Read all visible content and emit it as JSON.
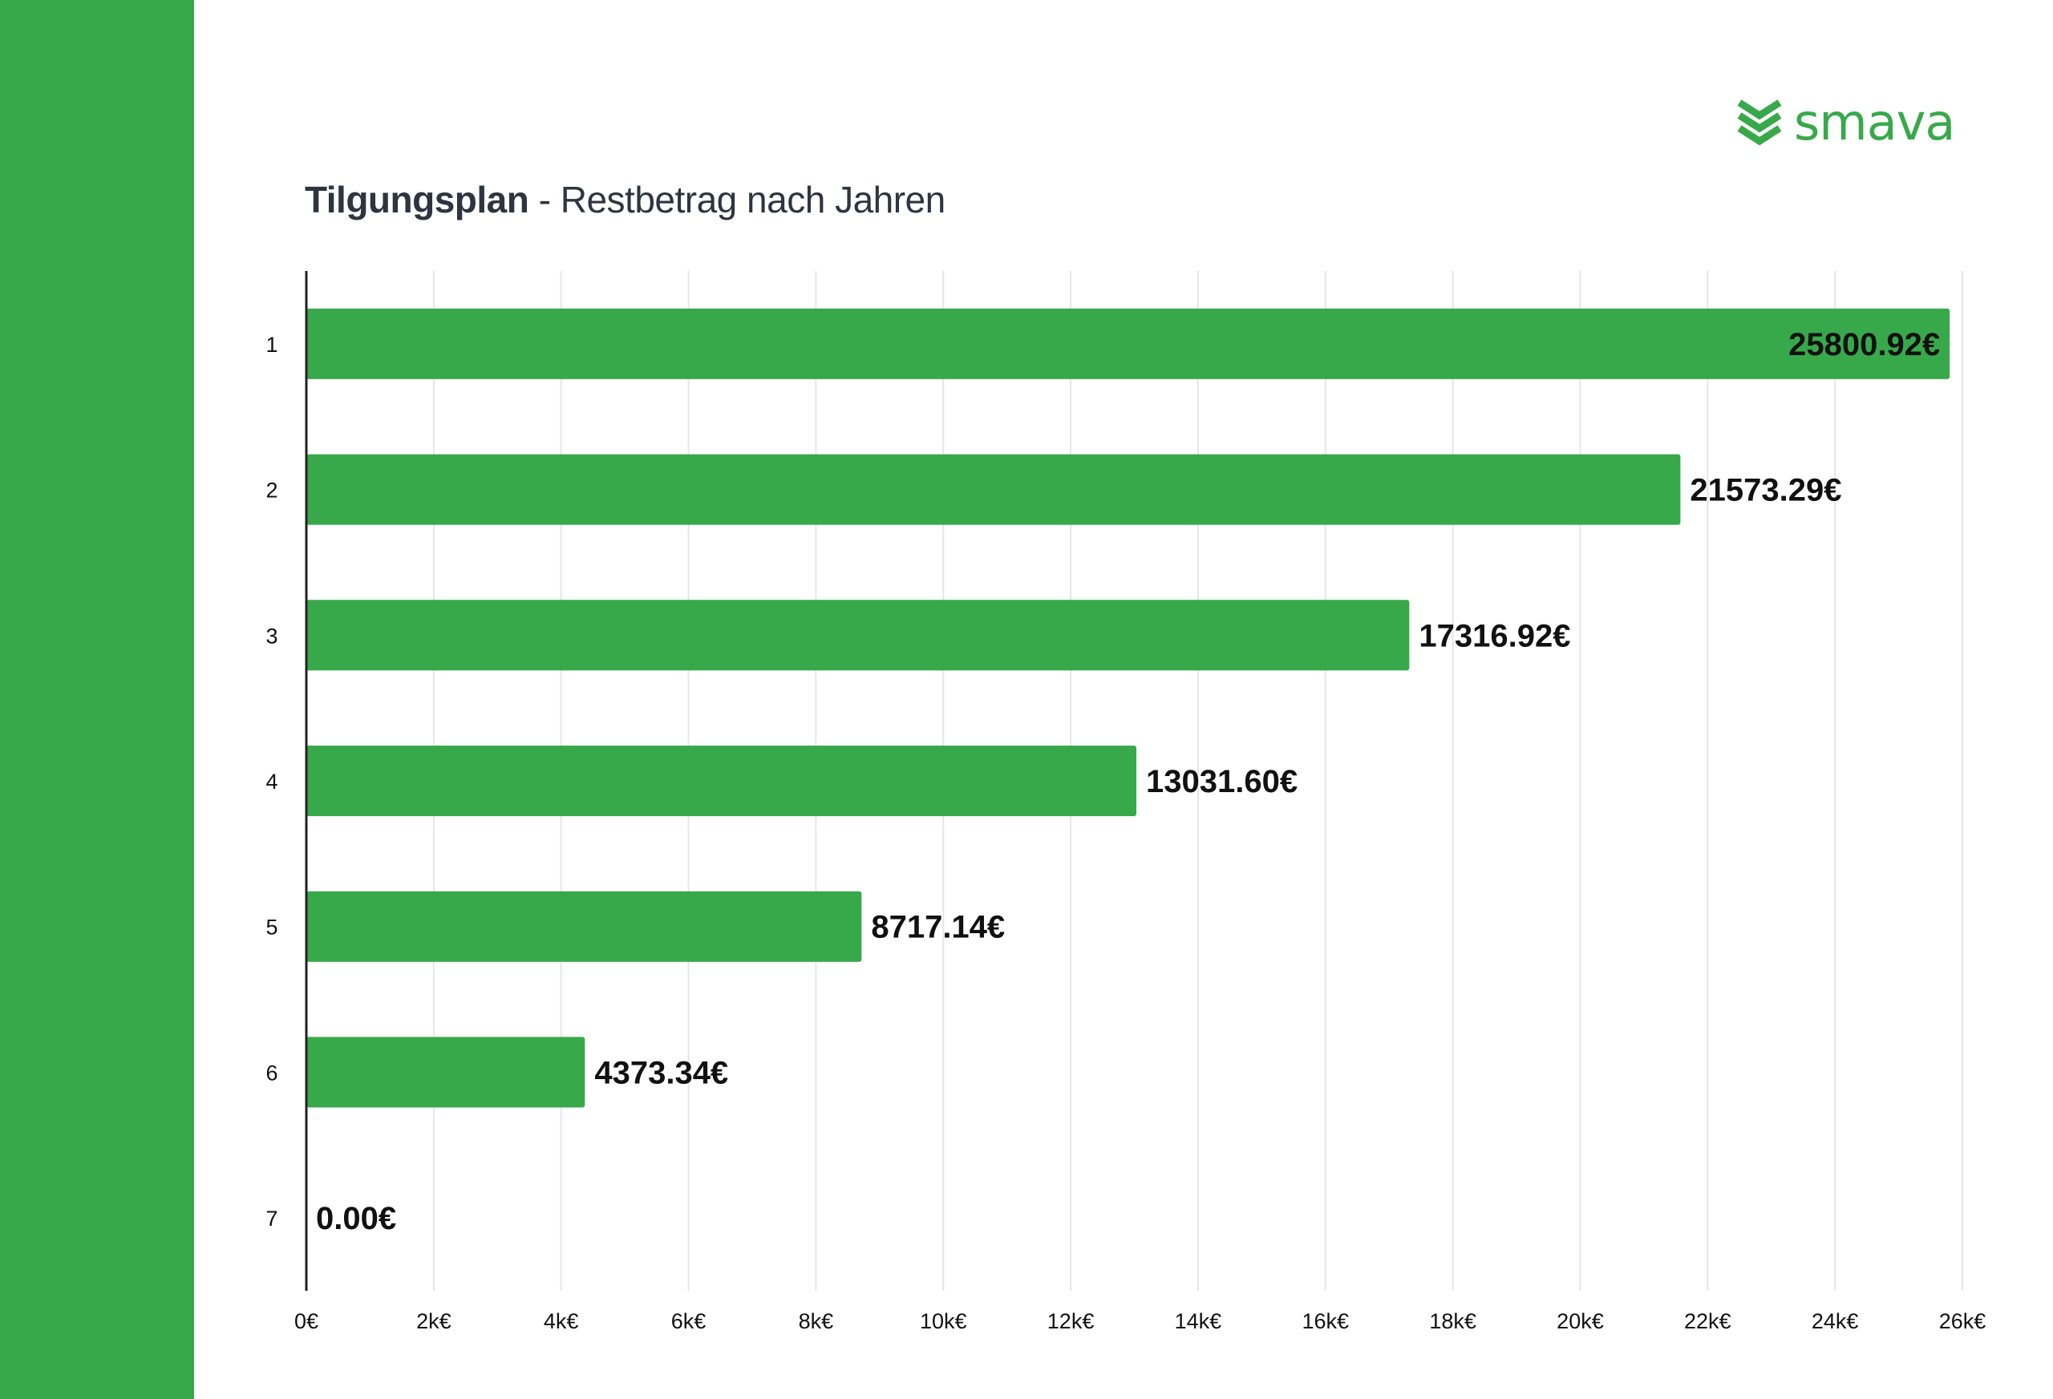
{
  "brand": {
    "name": "smava",
    "color": "#38a94a",
    "logo_icon": "chevron-stack-icon"
  },
  "header": {
    "title_bold": "Tilgungsplan",
    "title_rest": " - Restbetrag nach Jahren"
  },
  "chart_data": {
    "type": "bar",
    "orientation": "horizontal",
    "title": "Tilgungsplan - Restbetrag nach Jahren",
    "xlabel": "",
    "ylabel": "",
    "categories": [
      "1",
      "2",
      "3",
      "4",
      "5",
      "6",
      "7"
    ],
    "values": [
      25800.92,
      21573.29,
      17316.92,
      13031.6,
      8717.14,
      4373.34,
      0.0
    ],
    "value_labels": [
      "25800.92€",
      "21573.29€",
      "17316.92€",
      "13031.60€",
      "8717.14€",
      "4373.34€",
      "0.00€"
    ],
    "xlim": [
      0,
      26000
    ],
    "x_ticks": [
      0,
      2000,
      4000,
      6000,
      8000,
      10000,
      12000,
      14000,
      16000,
      18000,
      20000,
      22000,
      24000,
      26000
    ],
    "x_tick_labels": [
      "0€",
      "2k€",
      "4k€",
      "6k€",
      "8k€",
      "10k€",
      "12k€",
      "14k€",
      "16k€",
      "18k€",
      "20k€",
      "22k€",
      "24k€",
      "26k€"
    ],
    "grid": true,
    "bar_color": "#38a94a",
    "grid_color": "#e6e6e6",
    "axis_color": "#222222"
  }
}
